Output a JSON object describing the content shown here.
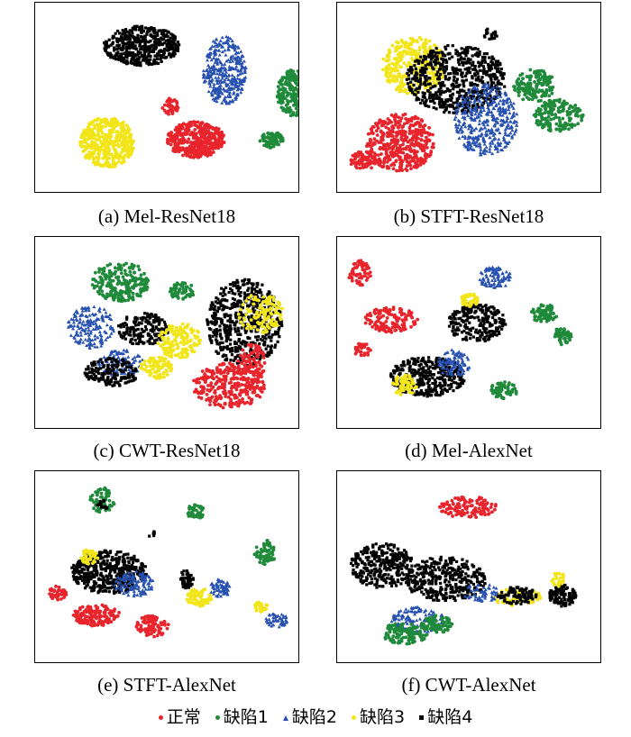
{
  "colors": {
    "normal": "#e8242c",
    "defect1": "#1f8a3a",
    "defect2": "#2650b0",
    "defect3": "#f2e51a",
    "defect4": "#000000"
  },
  "panels": [
    {
      "caption": "(a)  Mel-ResNet18"
    },
    {
      "caption": "(b)  STFT-ResNet18"
    },
    {
      "caption": "(c)  CWT-ResNet18"
    },
    {
      "caption": "(d)  Mel-AlexNet"
    },
    {
      "caption": "(e)  STFT-AlexNet"
    },
    {
      "caption": "(f)  CWT-AlexNet"
    }
  ],
  "legend": [
    {
      "label": "正常",
      "marker": "circle",
      "color": "#e8242c"
    },
    {
      "label": "缺陷1",
      "marker": "circle",
      "color": "#1f8a3a"
    },
    {
      "label": "缺陷2",
      "marker": "triangle",
      "color": "#2650b0"
    },
    {
      "label": "缺陷3",
      "marker": "circle",
      "color": "#f2e51a"
    },
    {
      "label": "缺陷4",
      "marker": "square",
      "color": "#000000"
    }
  ]
}
